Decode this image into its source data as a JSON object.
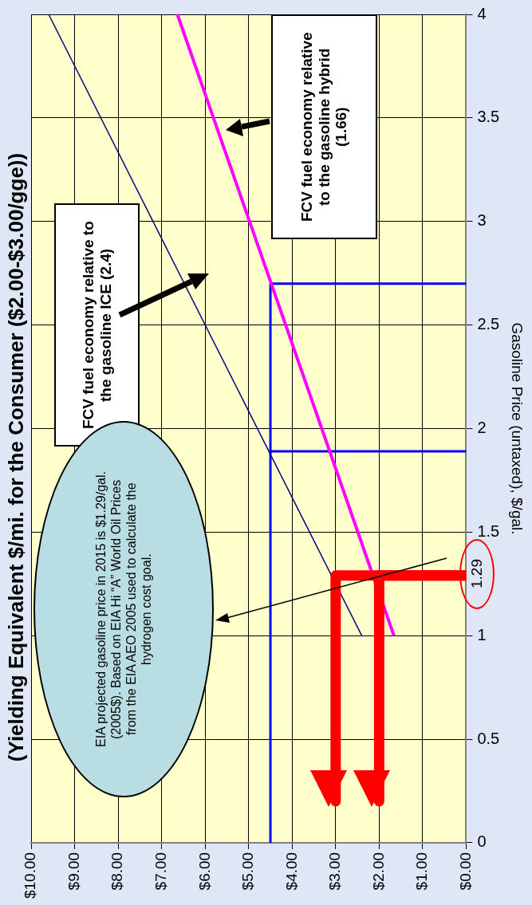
{
  "chart_data": {
    "type": "line",
    "title": "(Yielding Equivalent $/mi. for the Consumer ($2.00-$3.00/gge))",
    "ylabel": "Gasoline Price (untaxed), $/gal.",
    "annotations": [
      "FCV fuel economy relative to the gasoline ICE (2.4)",
      "FCV fuel economy relative to the gasoline hybrid (1.66)",
      "EIA  projected gasoline price in 2015 is $1.29/gal. (2005$).  Based on EIA Hi “A” World Oil Prices from the EIA AEO 2005 used to calculate the hydrogen cost goal.",
      "1.29"
    ],
    "series": [
      {
        "color": "#000080",
        "x": [
          2.4,
          9.6
        ],
        "values": [
          1,
          4
        ]
      },
      {
        "color": "#ff00ff",
        "x": [
          1.66,
          6.64
        ],
        "values": [
          1,
          4
        ]
      },
      {
        "color": "#0000ff",
        "x": [
          4.5,
          4.5,
          0
        ],
        "values": [
          0,
          2.7,
          2.7
        ]
      },
      {
        "color": "#0000ff",
        "x": [
          4.5,
          0
        ],
        "values": [
          1.89,
          1.89
        ]
      },
      {
        "color": "#ff0000",
        "x": [
          0,
          3,
          3
        ],
        "values": [
          1.29,
          1.29,
          0.2
        ]
      },
      {
        "color": "#ff0000",
        "x": [
          0,
          2,
          2
        ],
        "values": [
          1.29,
          1.29,
          0.2
        ]
      }
    ],
    "xlim": [
      10,
      0
    ],
    "xticks": [
      {
        "value": 0,
        "label": "$0.00"
      },
      {
        "value": 1,
        "label": "$1.00"
      },
      {
        "value": 2,
        "label": "$2.00"
      },
      {
        "value": 3,
        "label": "$3.00"
      },
      {
        "value": 4,
        "label": "$4.00"
      },
      {
        "value": 5,
        "label": "$5.00"
      },
      {
        "value": 6,
        "label": "$6.00"
      },
      {
        "value": 7,
        "label": "$7.00"
      },
      {
        "value": 8,
        "label": "$8.00"
      },
      {
        "value": 9,
        "label": "$9.00"
      },
      {
        "value": 10,
        "label": "$10.00"
      }
    ],
    "ylim": [
      0,
      4
    ],
    "yticks": [
      0,
      0.5,
      1,
      1.5,
      2,
      2.5,
      3,
      3.5,
      4
    ],
    "grid": true,
    "legend": false
  }
}
